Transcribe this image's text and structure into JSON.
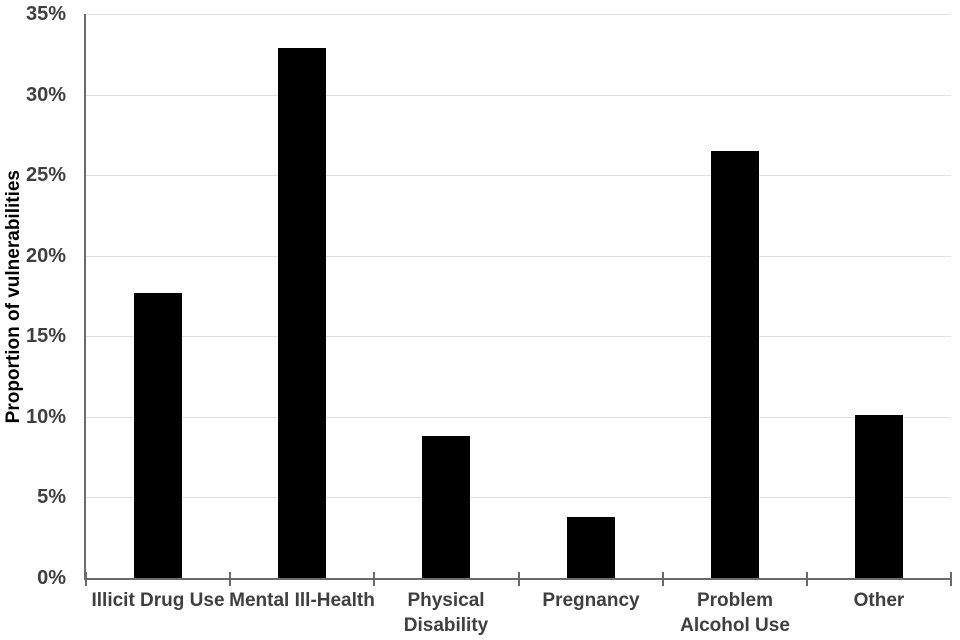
{
  "chart_data": {
    "type": "bar",
    "title": "",
    "xlabel": "",
    "ylabel": "Proportion of vulnerabilities",
    "categories": [
      "Illicit Drug Use",
      "Mental Ill-Health",
      "Physical\nDisability",
      "Pregnancy",
      "Problem\nAlcohol Use",
      "Other"
    ],
    "values": [
      17.7,
      32.9,
      8.8,
      3.8,
      26.5,
      10.1
    ],
    "ylim": [
      0,
      35
    ],
    "ytick_values": [
      0,
      5,
      10,
      15,
      20,
      25,
      30,
      35
    ],
    "ytick_labels": [
      "0%",
      "5%",
      "10%",
      "15%",
      "20%",
      "25%",
      "30%",
      "35%"
    ],
    "grid": true,
    "legend": "none",
    "bar_color": "#000000",
    "gridline_color": "#dfdfdf",
    "axis_color": "#6b6b6b",
    "text_color": "#3f3f3f"
  }
}
